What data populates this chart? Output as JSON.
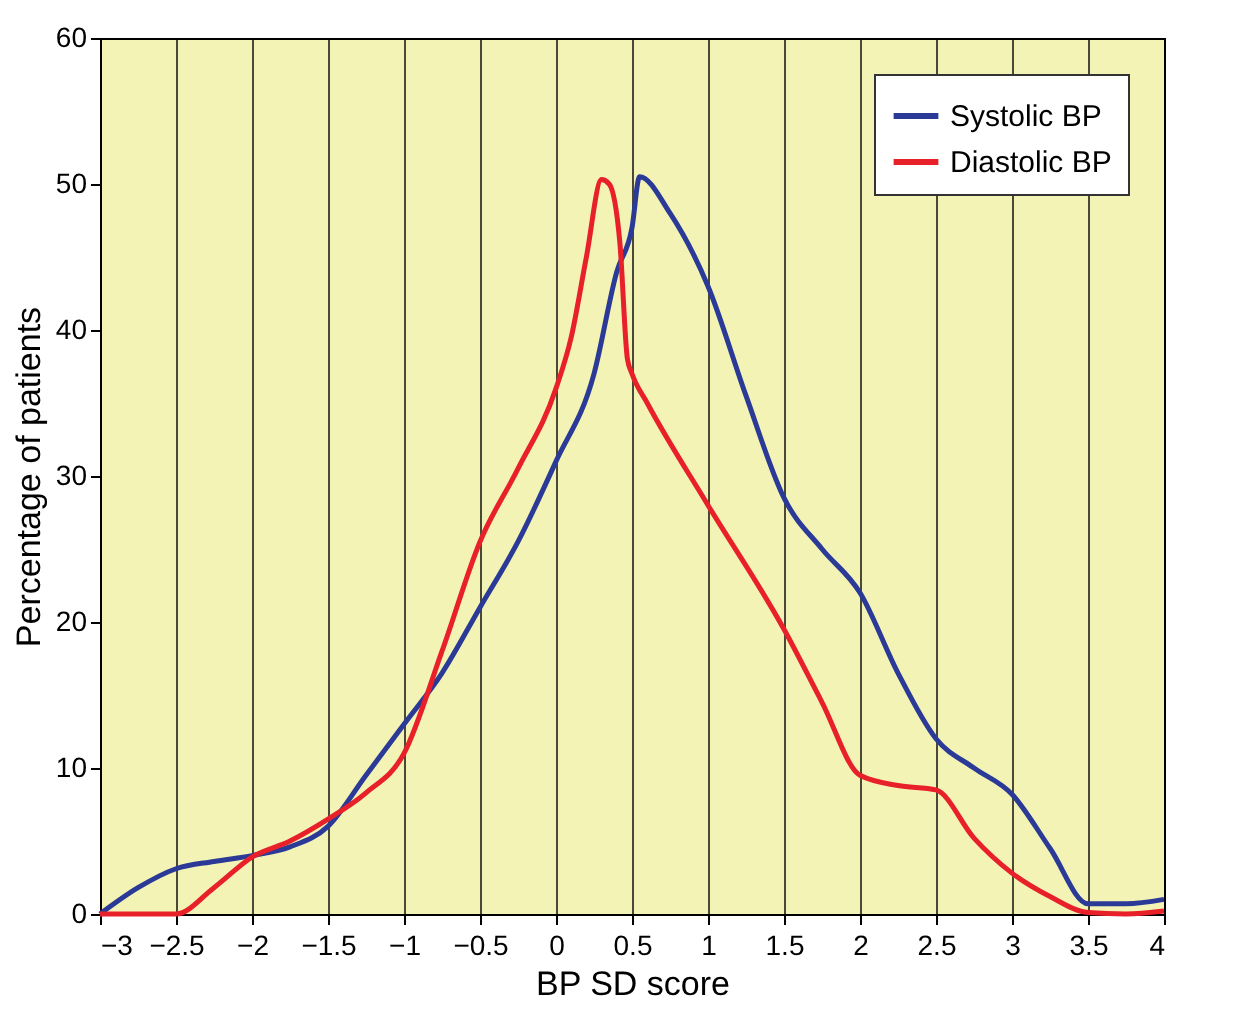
{
  "chart_data": {
    "type": "line",
    "xlabel": "BP SD score",
    "ylabel": "Percentage of patients",
    "xlim": [
      -3,
      4
    ],
    "xticks": [
      -3,
      -2.5,
      -2,
      -1.5,
      -1,
      -0.5,
      0,
      0.5,
      1,
      1.5,
      2,
      2.5,
      3,
      3.5,
      4
    ],
    "ylim": [
      0,
      60
    ],
    "yticks": [
      0,
      10,
      20,
      30,
      40,
      50,
      60
    ],
    "grid": "x",
    "legend": "top right",
    "marker": "none",
    "line_style": "solid",
    "series": [
      {
        "name": "Systolic BP",
        "color": "#2b3a97",
        "x": [
          -3,
          -2.75,
          -2.5,
          -2.25,
          -2,
          -1.75,
          -1.5,
          -1.25,
          -1,
          -0.75,
          -0.5,
          -0.25,
          0,
          0.25,
          0.4,
          0.5,
          0.55,
          0.75,
          1,
          1.25,
          1.5,
          1.75,
          2,
          2.25,
          2.5,
          2.75,
          3,
          3.25,
          3.5,
          3.75,
          4
        ],
        "values": [
          0,
          1.8,
          3.1,
          3.6,
          4.0,
          4.6,
          6.0,
          9.5,
          13,
          16.5,
          21,
          25.5,
          31,
          37,
          44,
          47,
          50.5,
          48,
          43,
          35.5,
          28.5,
          25,
          22,
          16.5,
          12,
          10,
          8.2,
          4.5,
          0.7,
          0.7,
          1.0
        ]
      },
      {
        "name": "Diastolic BP",
        "color": "#e8202a",
        "x": [
          -3,
          -2.75,
          -2.5,
          -2.25,
          -2,
          -1.75,
          -1.5,
          -1.25,
          -1,
          -0.75,
          -0.5,
          -0.25,
          0,
          0.1,
          0.2,
          0.3,
          0.35,
          0.42,
          0.47,
          0.5,
          0.6,
          1,
          1.5,
          1.75,
          2,
          2.25,
          2.5,
          2.75,
          3,
          3.25,
          3.5,
          3.75,
          4
        ],
        "values": [
          0,
          0,
          0,
          1.8,
          3.9,
          5,
          6.5,
          8.3,
          11,
          18,
          25.5,
          30.5,
          36,
          39.5,
          45,
          50.3,
          50,
          46,
          38,
          37,
          35,
          28,
          19.5,
          14.5,
          9.5,
          8.8,
          8.5,
          5.2,
          2.8,
          1.2,
          0.1,
          0,
          0.2
        ]
      }
    ]
  }
}
